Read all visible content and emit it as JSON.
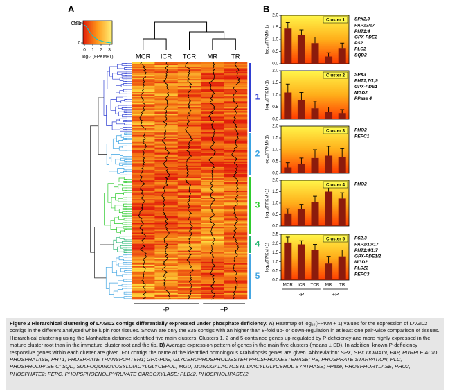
{
  "panel_a": {
    "label": "A",
    "key": {
      "title": "Count",
      "xlabel": "log₁₀ (FPKM+1)",
      "xlim": [
        0,
        3
      ],
      "xticks": [
        0,
        1,
        2,
        3
      ],
      "ylim": [
        0,
        100
      ],
      "yticks": [
        0,
        100
      ]
    },
    "columns": [
      "MCR",
      "ICR",
      "TCR",
      "MR",
      "TR"
    ],
    "groups": [
      {
        "label": "-P",
        "count": 3
      },
      {
        "label": "+P",
        "count": 2
      }
    ],
    "clusters": [
      {
        "label": "1",
        "color": "#2f3fd2"
      },
      {
        "label": "2",
        "color": "#39a2e2"
      },
      {
        "label": "3",
        "color": "#2ecb2e"
      },
      {
        "label": "4",
        "color": "#22b46e"
      },
      {
        "label": "5",
        "color": "#45a6e2"
      }
    ]
  },
  "panel_b": {
    "label": "B"
  },
  "chart_data": [
    {
      "type": "bar",
      "title": "Cluster 1",
      "ylabel": "log₁₀(FPKM+1)",
      "values": [
        1.45,
        1.2,
        0.85,
        0.3,
        0.65
      ],
      "errors": [
        0.25,
        0.2,
        0.25,
        0.15,
        0.2
      ],
      "color": "#8c1b0c",
      "ylim": [
        0,
        2
      ],
      "yticks": [
        {
          "value": 0,
          "label": "0.0"
        },
        {
          "value": 0.5,
          "label": "0.5"
        },
        {
          "value": 1,
          "label": "1.0"
        },
        {
          "value": 1.5,
          "label": "1.5"
        },
        {
          "value": 2,
          "label": "2.0"
        }
      ],
      "genes": [
        "SPX2,3",
        "PAP12/17",
        "PHT1;4",
        "GPX-PDE2",
        "PS2",
        "PLC2",
        "SQD2"
      ]
    },
    {
      "type": "bar",
      "title": "Cluster 2",
      "ylabel": "log₁₀(FPKM+1)",
      "values": [
        1.1,
        0.8,
        0.45,
        0.3,
        0.25
      ],
      "errors": [
        0.35,
        0.3,
        0.3,
        0.2,
        0.15
      ],
      "color": "#8c1b0c",
      "ylim": [
        0,
        2
      ],
      "yticks": [
        {
          "value": 0,
          "label": "0.0"
        },
        {
          "value": 0.5,
          "label": "0.5"
        },
        {
          "value": 1,
          "label": "1.0"
        },
        {
          "value": 1.5,
          "label": "1.5"
        },
        {
          "value": 2,
          "label": "2.0"
        }
      ],
      "genes": [
        "SPX3",
        "PHT1;7/1;9",
        "GPX-PDE1",
        "MGD2",
        "PPase 4"
      ]
    },
    {
      "type": "bar",
      "title": "Cluster 3",
      "ylabel": "log₁₀(FPKM+1)",
      "values": [
        0.25,
        0.4,
        0.65,
        0.75,
        0.7
      ],
      "errors": [
        0.2,
        0.25,
        0.35,
        0.4,
        0.35
      ],
      "color": "#8c1b0c",
      "ylim": [
        0,
        2
      ],
      "yticks": [
        {
          "value": 0,
          "label": "0.0"
        },
        {
          "value": 0.5,
          "label": "0.5"
        },
        {
          "value": 1,
          "label": "1.0"
        },
        {
          "value": 1.5,
          "label": "1.5"
        },
        {
          "value": 2,
          "label": "2.0"
        }
      ],
      "genes": [
        "PHO2",
        "PEPC1"
      ]
    },
    {
      "type": "bar",
      "title": "Cluster 4",
      "ylabel": "log₁₀(FPKM+1)",
      "values": [
        0.55,
        0.75,
        1.05,
        1.5,
        1.2
      ],
      "errors": [
        0.2,
        0.2,
        0.25,
        0.3,
        0.25
      ],
      "color": "#8c1b0c",
      "ylim": [
        0,
        2
      ],
      "yticks": [
        {
          "value": 0,
          "label": "0.0"
        },
        {
          "value": 0.5,
          "label": "0.5"
        },
        {
          "value": 1,
          "label": "1.0"
        },
        {
          "value": 1.5,
          "label": "1.5"
        },
        {
          "value": 2,
          "label": "2.0"
        }
      ],
      "genes": [
        "PHO2"
      ]
    },
    {
      "type": "bar",
      "title": "Cluster 5",
      "ylabel": "log₁₀(FPKM+1)",
      "values": [
        2.05,
        1.95,
        1.65,
        0.9,
        1.3
      ],
      "errors": [
        0.3,
        0.2,
        0.3,
        0.4,
        0.35
      ],
      "color": "#8c1b0c",
      "ylim": [
        0,
        2.5
      ],
      "yticks": [
        {
          "value": 0,
          "label": "0.0"
        },
        {
          "value": 0.5,
          "label": "0.5"
        },
        {
          "value": 1,
          "label": "1.0"
        },
        {
          "value": 1.5,
          "label": "1.5"
        },
        {
          "value": 2,
          "label": "2.0"
        },
        {
          "value": 2.5,
          "label": "2.5"
        }
      ],
      "genes": [
        "PS2,3",
        "PAP1/10/17",
        "PHT1;4/1;7",
        "GPX-PDE1/2",
        "MGD2",
        "PLDζ2",
        "PEPC3"
      ],
      "categories": [
        "MCR",
        "ICR",
        "TCR",
        "MR",
        "TR"
      ],
      "groups": [
        {
          "label": "-P",
          "count": 3
        },
        {
          "label": "+P",
          "count": 2
        }
      ]
    }
  ],
  "caption": {
    "parts": [
      {
        "text": "Figure 2 Hierarchical clustering of LAGI02 contigs differentially expressed under phosphate deficiency.",
        "style": "bold"
      },
      {
        "text": "A)",
        "style": "bold"
      },
      {
        "text": "Heatmap of log₁₀(FPKM + 1) values for the expression of LAGI02 contigs in the different analysed white lupin root tissues. Shown are only the 835 contigs with an higher than 8-fold up- or down-regulation in at least one pair-wise comparison of tissues. Hierarchical clustering using the Manhattan distance identified five main clusters. Clusters 1, 2 and 5 contained genes up-regulated by P-deficiency and more highly expressed in the mature cluster root than in the immature cluster root and the tip.",
        "style": "normal"
      },
      {
        "text": "B)",
        "style": "bold"
      },
      {
        "text": "Average expression pattern of genes in the main five clusters (means ± SD). In addition, known P-deficiency responsive genes within each cluster are given. For contigs the name of the identified homologous Arabidopsis genes are given. Abbreviation:",
        "style": "normal"
      },
      {
        "text": "SPX, SPX DOMAIN; PAP, PURPLE ACID PHOSPHATASE, PHT1, PHOSPHATE TRANSPORTER1; GPX-PDE, GLYCEROPHOSPHODIESTER PHOSPHODIESTERASE; PS, PHOSPHATE STARVATION, PLC, PHOSPHOLIPASE C; SQD, SULFOQUINOVOSYLDIACYLGLYCEROL; MGD, MONOGALACTOSYL DIACYLGLYCEROL SYNTHASE; PPase, PHOSPHORYLASE, PHO2, PHOSPHATE2; PEPC, PHOPSPHOENOLPYRUVATE CARBOXYLASE; PLDζ2, PHOSPHOLIPASEζ2.",
        "style": "italic"
      }
    ]
  }
}
